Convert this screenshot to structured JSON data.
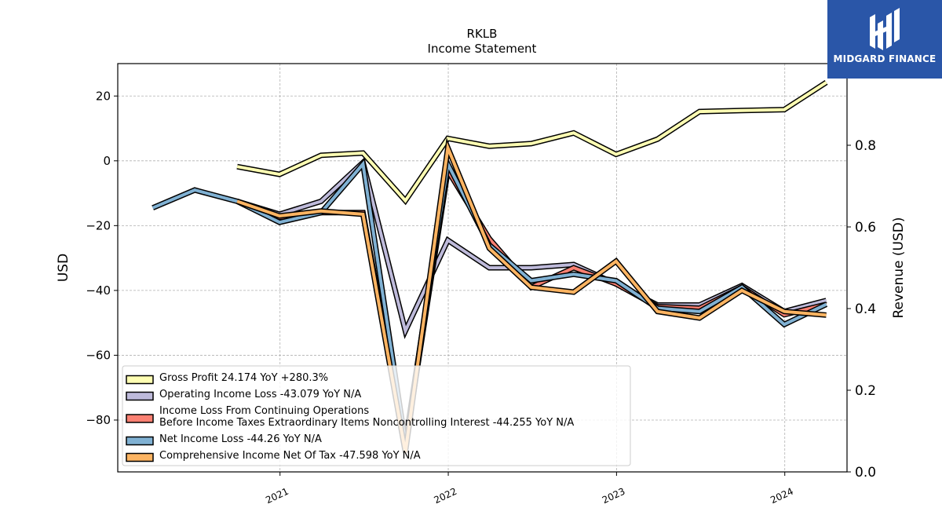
{
  "logo": {
    "text": "MIDGARD FINANCE",
    "background": "#2a56a8"
  },
  "chart_data": {
    "type": "line",
    "title": "RKLB",
    "subtitle": "Income Statement",
    "ylabel": "USD",
    "y2label": "Revenue (USD)",
    "ylim": [
      -96,
      30
    ],
    "y2lim": [
      0.0,
      1.0
    ],
    "yticks": [
      20,
      0,
      -20,
      -40,
      -60,
      -80
    ],
    "ytick_labels": [
      "20",
      "0",
      "−20",
      "−40",
      "−60",
      "−80"
    ],
    "y2ticks": [
      0.0,
      0.2,
      0.4,
      0.6,
      0.8
    ],
    "y2tick_labels": [
      "0.0",
      "0.2",
      "0.4",
      "0.6",
      "0.8"
    ],
    "xlim": [
      "2020-01-15",
      "2024-05-15"
    ],
    "xticks": [
      "2021-01-01",
      "2022-01-01",
      "2023-01-01",
      "2024-01-01"
    ],
    "xtick_labels": [
      "2021",
      "2022",
      "2023",
      "2024"
    ],
    "grid": true,
    "legend_position": "lower-left",
    "series": [
      {
        "name": "Gross Profit",
        "legend_label": "Gross Profit  24.174 YoY +280.3%",
        "color": "#ffffb3",
        "x": [
          "2020-09-30",
          "2020-12-31",
          "2021-03-31",
          "2021-06-30",
          "2021-09-30",
          "2021-12-31",
          "2022-03-31",
          "2022-06-30",
          "2022-09-30",
          "2022-12-31",
          "2023-03-31",
          "2023-06-30",
          "2023-09-30",
          "2023-12-31",
          "2024-03-31"
        ],
        "values": [
          -1.8,
          -4.2,
          1.7,
          2.4,
          -12.3,
          6.9,
          4.5,
          5.3,
          8.6,
          2.0,
          6.7,
          15.2,
          15.5,
          15.8,
          24.2
        ]
      },
      {
        "name": "Operating Income Loss",
        "legend_label": "Operating Income Loss  -43.079 YoY N/A",
        "color": "#bebada",
        "x": [
          "2020-09-30",
          "2020-12-31",
          "2021-03-31",
          "2021-06-30",
          "2021-09-30",
          "2021-12-31",
          "2022-03-31",
          "2022-06-30",
          "2022-09-30",
          "2022-12-31",
          "2023-03-31",
          "2023-06-30",
          "2023-09-30",
          "2023-12-31",
          "2024-03-31"
        ],
        "values": [
          -12.5,
          -16.5,
          -12.5,
          -0.5,
          -52.5,
          -24.5,
          -33.0,
          -33.0,
          -32.0,
          -38.0,
          -44.5,
          -44.5,
          -38.5,
          -46.5,
          -43.1
        ]
      },
      {
        "name": "Income Loss From Continuing Operations Before Income Taxes Extraordinary Items Noncontrolling Interest",
        "legend_label": "Income Loss From Continuing Operations\nBefore Income Taxes Extraordinary Items Noncontrolling Interest  -44.255 YoY N/A",
        "color": "#fb8072",
        "x": [
          "2020-09-30",
          "2020-12-31",
          "2021-03-31",
          "2021-06-30",
          "2021-09-30",
          "2021-12-31",
          "2022-03-31",
          "2022-06-30",
          "2022-09-30",
          "2022-12-31",
          "2023-03-31",
          "2023-06-30",
          "2023-09-30",
          "2023-12-31",
          "2024-03-31"
        ],
        "values": [
          -12.5,
          -17.5,
          -16.0,
          -16.0,
          -88.0,
          -3.0,
          -24.0,
          -39.0,
          -33.0,
          -38.0,
          -45.0,
          -45.5,
          -39.0,
          -47.5,
          -44.3
        ]
      },
      {
        "name": "Net Income Loss",
        "legend_label": "Net Income Loss  -44.26 YoY N/A",
        "color": "#80b1d3",
        "x": [
          "2020-03-31",
          "2020-06-30",
          "2020-09-30",
          "2020-12-31",
          "2021-03-31",
          "2021-06-30",
          "2021-09-30",
          "2021-12-31",
          "2022-03-31",
          "2022-06-30",
          "2022-09-30",
          "2022-12-31",
          "2023-03-31",
          "2023-06-30",
          "2023-09-30",
          "2023-12-31",
          "2024-03-31"
        ],
        "values": [
          -14.5,
          -9.0,
          -12.5,
          -19.0,
          -16.0,
          -1.0,
          -87.0,
          -1.0,
          -26.0,
          -37.0,
          -35.0,
          -37.0,
          -45.5,
          -46.5,
          -39.0,
          -50.5,
          -44.3
        ]
      },
      {
        "name": "Comprehensive Income Net Of Tax",
        "legend_label": "Comprehensive Income Net Of Tax  -47.598 YoY N/A",
        "color": "#fdb462",
        "x": [
          "2020-09-30",
          "2020-12-31",
          "2021-03-31",
          "2021-06-30",
          "2021-09-30",
          "2021-12-31",
          "2022-03-31",
          "2022-06-30",
          "2022-09-30",
          "2022-12-31",
          "2023-03-31",
          "2023-06-30",
          "2023-09-30",
          "2023-12-31",
          "2024-03-31"
        ],
        "values": [
          -12.5,
          -17.0,
          -15.5,
          -16.5,
          -90.0,
          4.0,
          -27.0,
          -39.0,
          -40.5,
          -31.0,
          -46.5,
          -48.5,
          -40.0,
          -46.5,
          -47.6
        ]
      }
    ]
  }
}
